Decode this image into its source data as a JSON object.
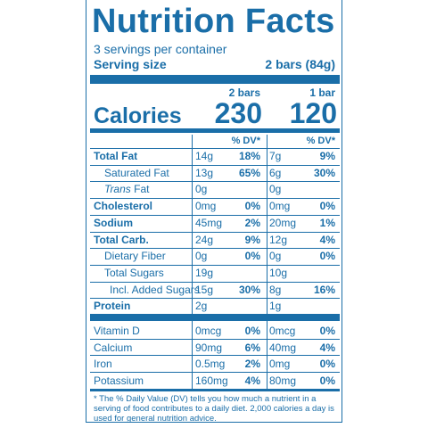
{
  "header": {
    "title": "Nutrition Facts",
    "servings": "3 servings per container",
    "serving_size_label": "Serving size",
    "serving_size_value": "2 bars (84g)"
  },
  "columns": [
    "2 bars",
    "1 bar"
  ],
  "calories": {
    "label": "Calories",
    "values": [
      "230",
      "120"
    ]
  },
  "dv_header": [
    "% DV*",
    "% DV*"
  ],
  "nutrients": [
    {
      "name": "Total Fat",
      "bold": true,
      "indent": 0,
      "amounts": [
        "14g",
        "7g"
      ],
      "dv": [
        "18%",
        "9%"
      ]
    },
    {
      "name": "Saturated Fat",
      "bold": false,
      "indent": 1,
      "amounts": [
        "13g",
        "6g"
      ],
      "dv": [
        "65%",
        "30%"
      ]
    },
    {
      "name_italic": "Trans",
      "name": "Fat",
      "bold": false,
      "indent": 1,
      "amounts": [
        "0g",
        "0g"
      ],
      "dv": [
        null,
        null
      ]
    },
    {
      "name": "Cholesterol",
      "bold": true,
      "indent": 0,
      "amounts": [
        "0mg",
        "0mg"
      ],
      "dv": [
        "0%",
        "0%"
      ]
    },
    {
      "name": "Sodium",
      "bold": true,
      "indent": 0,
      "amounts": [
        "45mg",
        "20mg"
      ],
      "dv": [
        "2%",
        "1%"
      ]
    },
    {
      "name": "Total Carb.",
      "bold": true,
      "indent": 0,
      "amounts": [
        "24g",
        "12g"
      ],
      "dv": [
        "9%",
        "4%"
      ]
    },
    {
      "name": "Dietary Fiber",
      "bold": false,
      "indent": 1,
      "amounts": [
        "0g",
        "0g"
      ],
      "dv": [
        "0%",
        "0%"
      ]
    },
    {
      "name": "Total Sugars",
      "bold": false,
      "indent": 1,
      "amounts": [
        "19g",
        "10g"
      ],
      "dv": [
        null,
        null
      ]
    },
    {
      "name": "Incl. Added Sugars",
      "bold": false,
      "indent": 2,
      "amounts": [
        "15g",
        "8g"
      ],
      "dv": [
        "30%",
        "16%"
      ]
    },
    {
      "name": "Protein",
      "bold": true,
      "indent": 0,
      "amounts": [
        "2g",
        "1g"
      ],
      "dv": [
        null,
        null
      ]
    }
  ],
  "vitamins": [
    {
      "name": "Vitamin D",
      "amounts": [
        "0mcg",
        "0mcg"
      ],
      "dv": [
        "0%",
        "0%"
      ]
    },
    {
      "name": "Calcium",
      "amounts": [
        "90mg",
        "40mg"
      ],
      "dv": [
        "6%",
        "4%"
      ]
    },
    {
      "name": "Iron",
      "amounts": [
        "0.5mg",
        "0mg"
      ],
      "dv": [
        "2%",
        "0%"
      ]
    },
    {
      "name": "Potassium",
      "amounts": [
        "160mg",
        "80mg"
      ],
      "dv": [
        "4%",
        "0%"
      ]
    }
  ],
  "footnote": "* The % Daily Value (DV) tells you how much a nutrient in a serving of food contributes to a daily diet. 2,000 calories a day is used for general nutrition advice."
}
